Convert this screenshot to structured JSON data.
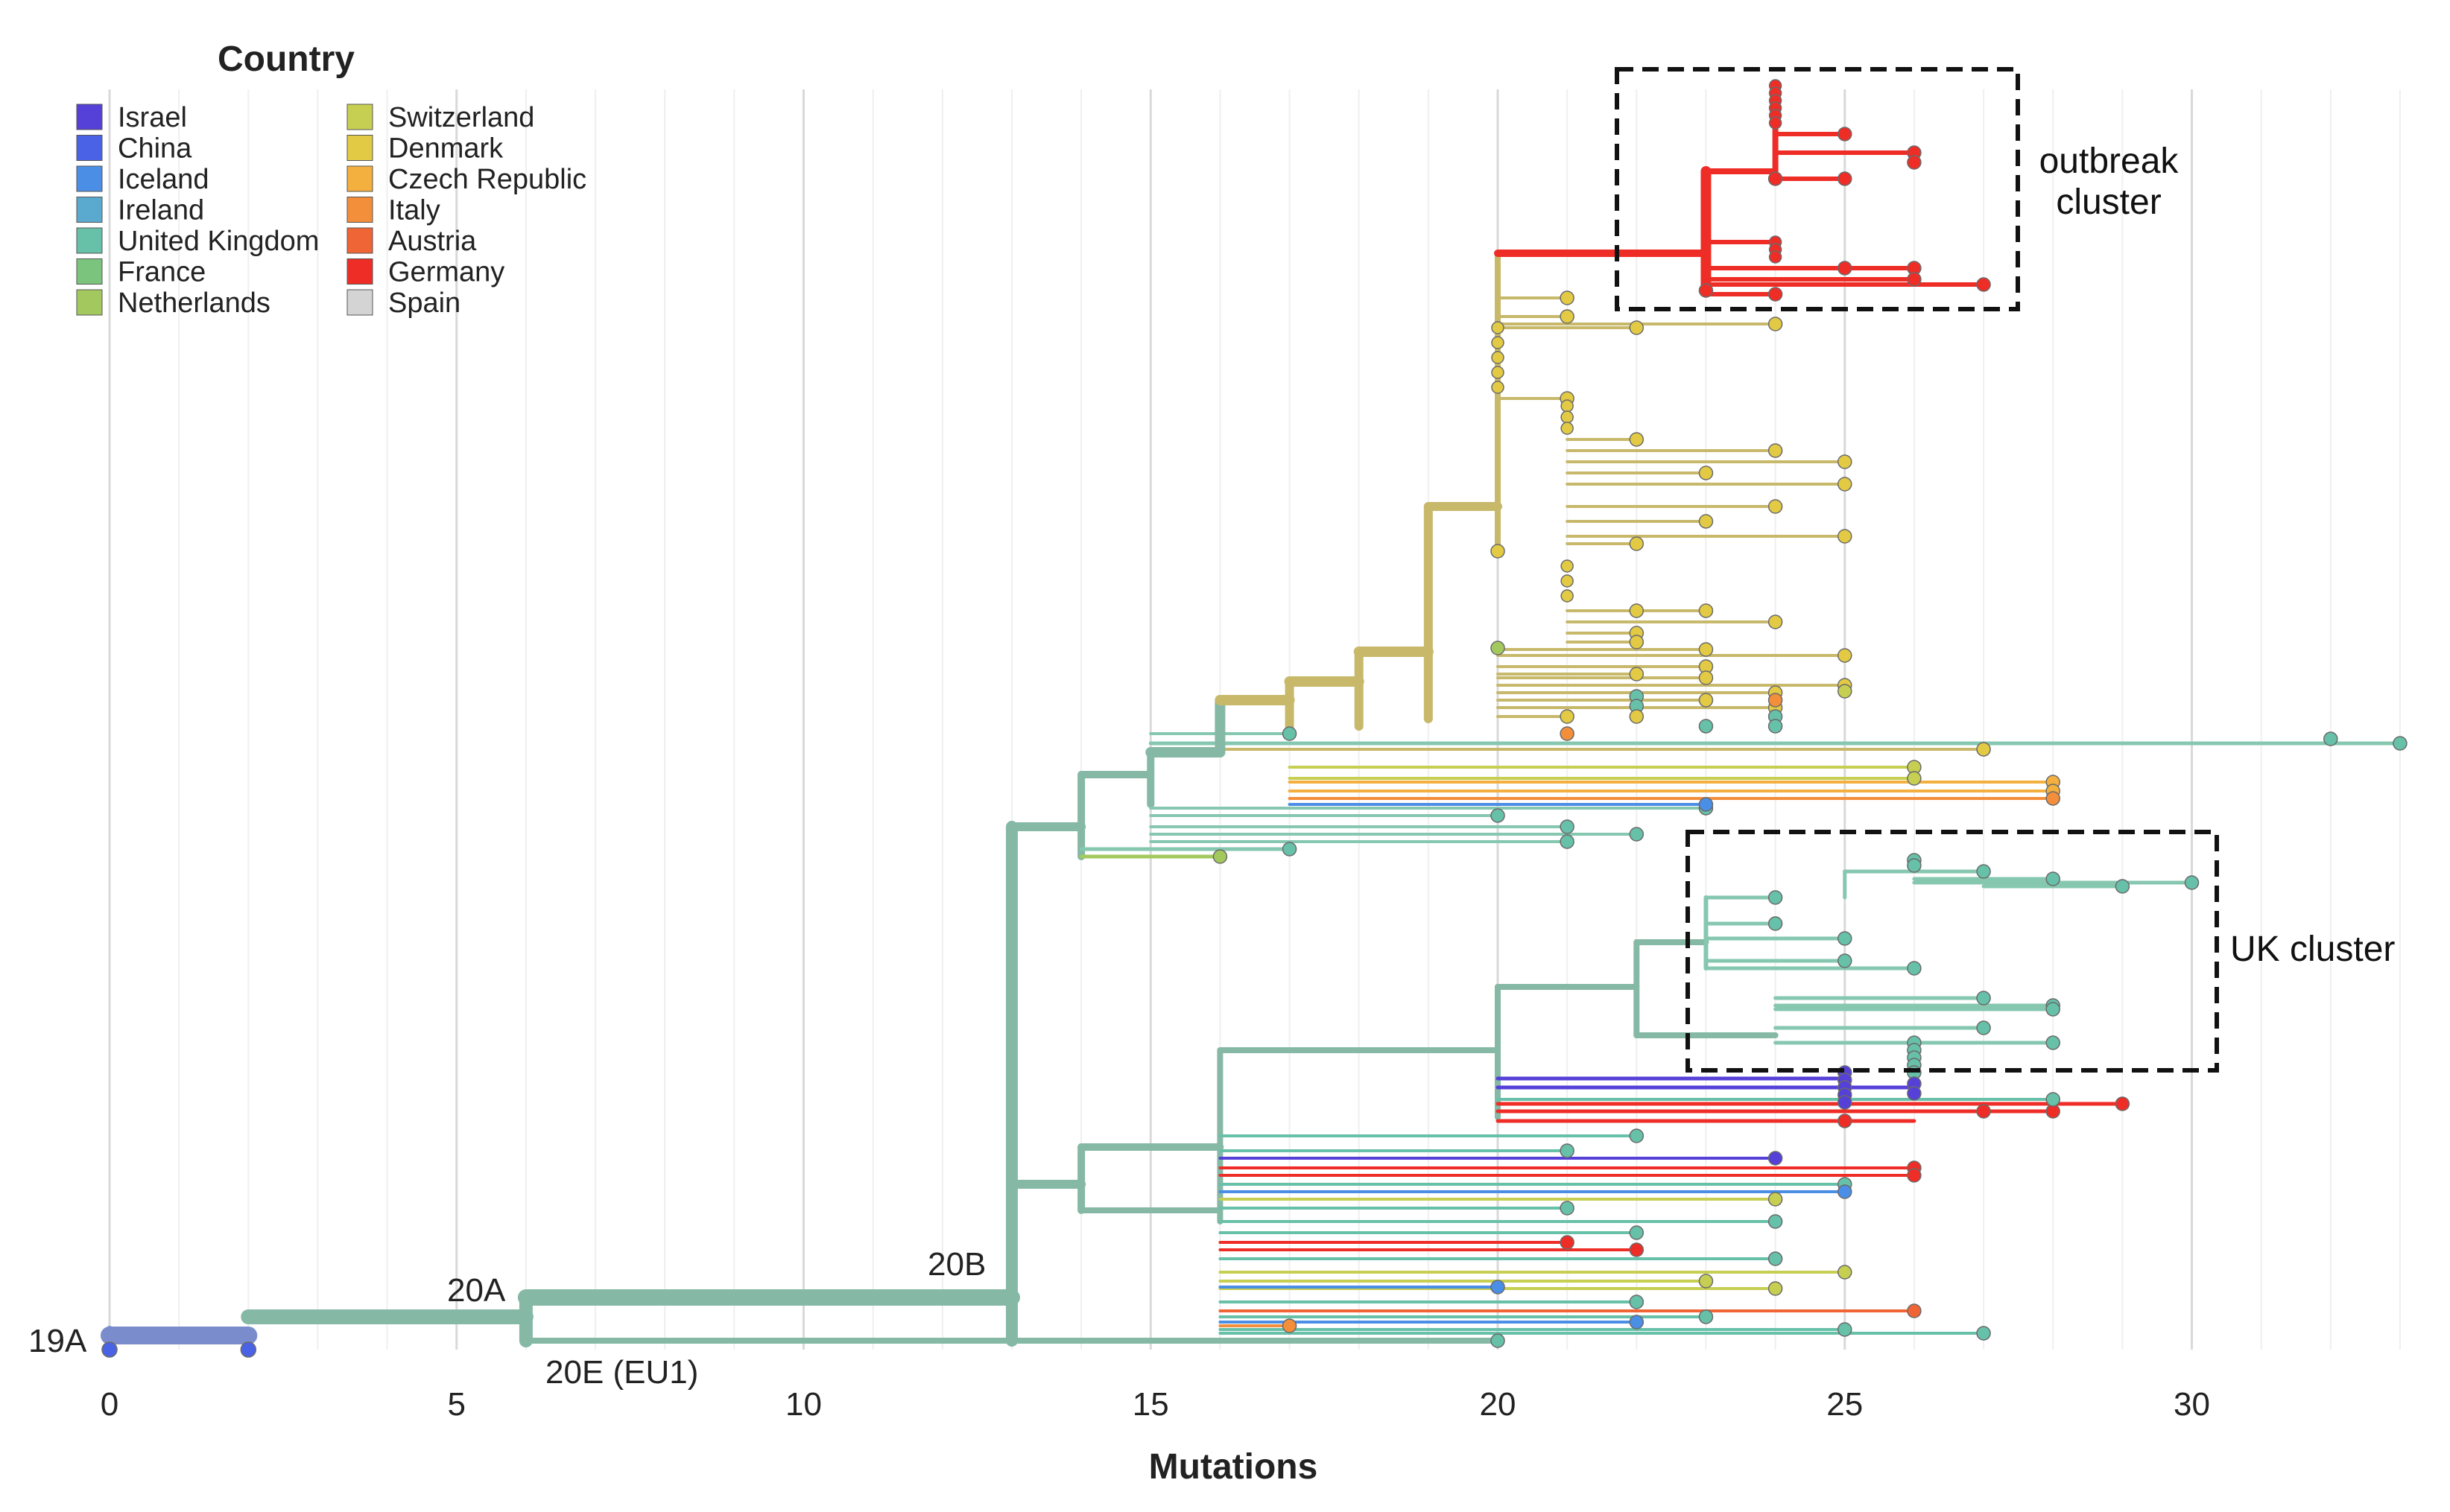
{
  "chart_data": {
    "type": "phylogenetic-tree",
    "xlabel": "Mutations",
    "xlim": [
      0,
      33
    ],
    "x_ticks": [
      0,
      5,
      10,
      15,
      20,
      25,
      30
    ],
    "legend": {
      "title": "Country",
      "entries": [
        {
          "name": "Israel",
          "color": "#5540d8"
        },
        {
          "name": "China",
          "color": "#4a63e6"
        },
        {
          "name": "Iceland",
          "color": "#4b8ee6"
        },
        {
          "name": "Ireland",
          "color": "#5aa9cf"
        },
        {
          "name": "United Kingdom",
          "color": "#67c0a8"
        },
        {
          "name": "France",
          "color": "#7bc47d"
        },
        {
          "name": "Netherlands",
          "color": "#a3c95e"
        },
        {
          "name": "Switzerland",
          "color": "#c6cf52"
        },
        {
          "name": "Denmark",
          "color": "#e3ca45"
        },
        {
          "name": "Czech Republic",
          "color": "#f3b03f"
        },
        {
          "name": "Italy",
          "color": "#f38e3b"
        },
        {
          "name": "Austria",
          "color": "#f06535"
        },
        {
          "name": "Germany",
          "color": "#ef2d27"
        },
        {
          "name": "Spain",
          "color": "#d4d4d4"
        }
      ]
    },
    "clade_labels": [
      {
        "text": "19A",
        "x": 0
      },
      {
        "text": "20A",
        "x": 6
      },
      {
        "text": "20B",
        "x": 13
      },
      {
        "text": "20E (EU1)",
        "x": 6
      }
    ],
    "annotations": [
      {
        "lines": [
          "outbreak",
          "cluster"
        ]
      },
      {
        "lines": [
          "UK cluster"
        ]
      }
    ],
    "branch_colors": {
      "trunk": "#86b8a6",
      "root": "#7a8ccc",
      "denmark_clade": "#c7b86a",
      "uk": "#86c7b0",
      "germany": "#ef2d27"
    }
  }
}
